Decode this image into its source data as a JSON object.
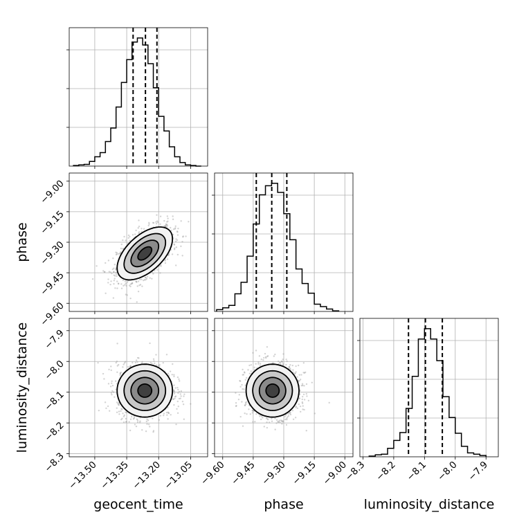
{
  "chart_data": {
    "type": "corner",
    "parameters": [
      "geocent_time",
      "phase",
      "luminosity_distance"
    ],
    "grid": true,
    "ranges": {
      "geocent_time": [
        -13.62,
        -12.97
      ],
      "phase": [
        -9.64,
        -8.96
      ],
      "luminosity_distance": [
        -8.31,
        -7.86
      ]
    },
    "ticks": {
      "geocent_time": [
        "−13.50",
        "−13.35",
        "−13.20",
        "−13.05"
      ],
      "phase": [
        "−9.60",
        "−9.45",
        "−9.30",
        "−9.15",
        "−9.00"
      ],
      "luminosity_distance": [
        "−8.3",
        "−8.2",
        "−8.1",
        "−8.0",
        "−7.9"
      ]
    },
    "tick_values": {
      "geocent_time": [
        -13.5,
        -13.35,
        -13.2,
        -13.05
      ],
      "phase": [
        -9.6,
        -9.45,
        -9.3,
        -9.15,
        -9.0
      ],
      "luminosity_distance": [
        -8.3,
        -8.2,
        -8.1,
        -8.0,
        -7.9
      ]
    },
    "histograms": {
      "geocent_time": {
        "bin_edges": [
          -13.6,
          -13.575,
          -13.55,
          -13.525,
          -13.5,
          -13.475,
          -13.45,
          -13.425,
          -13.4,
          -13.375,
          -13.35,
          -13.325,
          -13.3,
          -13.275,
          -13.25,
          -13.225,
          -13.2,
          -13.175,
          -13.15,
          -13.125,
          -13.1,
          -13.075,
          -13.05,
          -13.025,
          -13.0
        ],
        "counts": [
          1,
          2,
          3,
          8,
          16,
          23,
          42,
          65,
          101,
          143,
          182,
          212,
          219,
          207,
          175,
          134,
          85,
          60,
          33,
          16,
          6,
          2,
          1,
          0
        ],
        "quantiles": [
          -13.32,
          -13.262,
          -13.208
        ]
      },
      "phase": {
        "bin_edges": [
          -9.63,
          -9.6,
          -9.57,
          -9.54,
          -9.51,
          -9.48,
          -9.45,
          -9.42,
          -9.39,
          -9.36,
          -9.33,
          -9.3,
          -9.27,
          -9.24,
          -9.21,
          -9.18,
          -9.15,
          -9.12,
          -9.09,
          -9.06,
          -9.03
        ],
        "counts": [
          3,
          6,
          10,
          29,
          48,
          91,
          144,
          192,
          207,
          211,
          196,
          161,
          118,
          70,
          46,
          30,
          12,
          8,
          4,
          1
        ],
        "quantiles": [
          -9.435,
          -9.359,
          -9.285
        ]
      },
      "luminosity_distance": {
        "bin_edges": [
          -8.28,
          -8.26,
          -8.24,
          -8.22,
          -8.2,
          -8.18,
          -8.16,
          -8.14,
          -8.12,
          -8.1,
          -8.08,
          -8.06,
          -8.04,
          -8.02,
          -8.0,
          -7.98,
          -7.96,
          -7.94,
          -7.92,
          -7.9
        ],
        "counts": [
          1,
          3,
          4,
          13,
          25,
          37,
          74,
          123,
          180,
          196,
          180,
          147,
          92,
          60,
          36,
          16,
          6,
          4,
          2
        ],
        "quantiles": [
          -8.152,
          -8.097,
          -8.042
        ]
      }
    },
    "pairs": [
      {
        "x": "geocent_time",
        "y": "phase",
        "mean": [
          -13.265,
          -9.355
        ],
        "sd": [
          0.065,
          0.065
        ],
        "corr": 0.55
      },
      {
        "x": "geocent_time",
        "y": "luminosity_distance",
        "mean": [
          -13.265,
          -8.095
        ],
        "sd": [
          0.065,
          0.043
        ],
        "corr": 0.0
      },
      {
        "x": "phase",
        "y": "luminosity_distance",
        "mean": [
          -9.355,
          -8.095
        ],
        "sd": [
          0.065,
          0.043
        ],
        "corr": 0.0
      }
    ],
    "contour_sigma_levels": [
      0.5,
      1.0,
      1.5,
      2.0
    ]
  }
}
